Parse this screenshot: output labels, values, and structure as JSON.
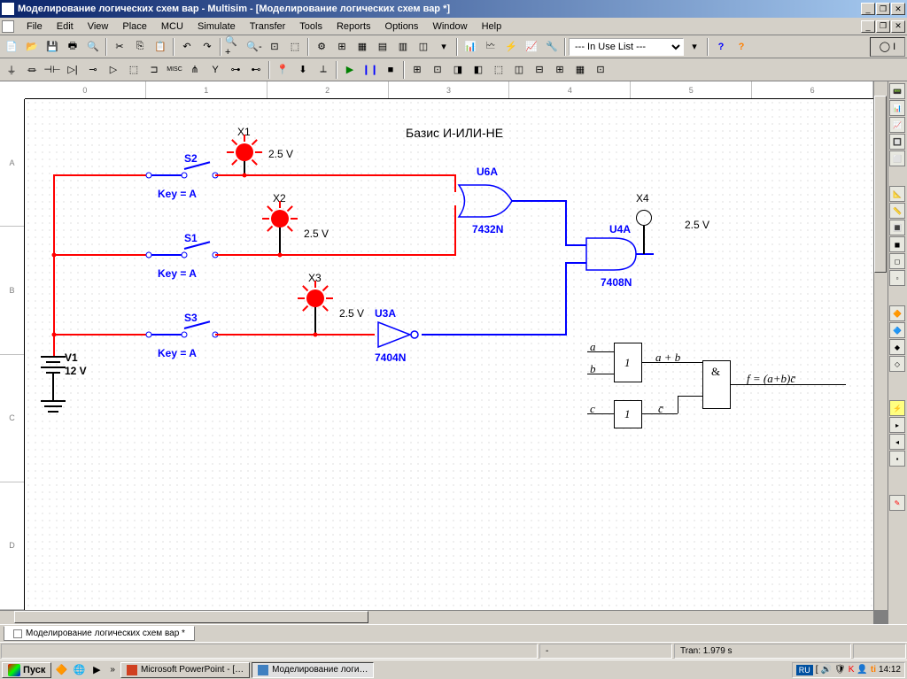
{
  "window": {
    "title": "Моделирование логических схем вар - Multisim - [Моделирование логических схем вар *]"
  },
  "menu": {
    "items": [
      "File",
      "Edit",
      "View",
      "Place",
      "MCU",
      "Simulate",
      "Transfer",
      "Tools",
      "Reports",
      "Options",
      "Window",
      "Help"
    ]
  },
  "toolbar2": {
    "inUseList": "--- In Use List ---"
  },
  "ruler_h": [
    "0",
    "1",
    "2",
    "3",
    "4",
    "5",
    "6"
  ],
  "ruler_v": [
    "A",
    "B",
    "C",
    "D"
  ],
  "circuit": {
    "title": "Базис И-ИЛИ-НЕ",
    "components": {
      "X1": "X1",
      "X2": "X2",
      "X3": "X3",
      "X4": "X4",
      "S1": "S1",
      "S2": "S2",
      "S3": "S3",
      "V1": "V1",
      "V1_val": "12 V",
      "voltage": "2.5 V",
      "keyA": "Key = A",
      "U6A": "U6A",
      "U6A_part": "7432N",
      "U4A": "U4A",
      "U4A_part": "7408N",
      "U3A": "U3A",
      "U3A_part": "7404N"
    },
    "formula": {
      "a": "a",
      "b": "b",
      "c": "c",
      "cbar": "c̄",
      "block1": "1",
      "block2": "1",
      "block_and": "&",
      "ab": "a + b",
      "result": "f = (a+b)c̄"
    },
    "colors": {
      "wire_red": "#ff0000",
      "wire_blue": "#0000ff",
      "probe": "#ff0000",
      "text_blue": "#0000ff"
    }
  },
  "tab": {
    "name": "Моделирование логических схем вар *"
  },
  "status": {
    "tran": "Tran: 1.979 s"
  },
  "taskbar": {
    "start": "Пуск",
    "tasks": [
      "Microsoft PowerPoint - […",
      "Моделирование логи…"
    ],
    "lang": "RU",
    "clock": "14:12"
  }
}
